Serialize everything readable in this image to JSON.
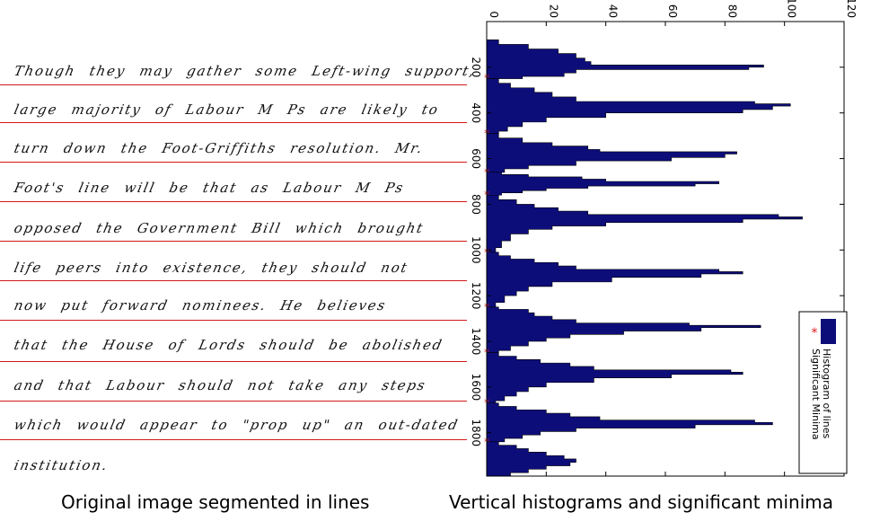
{
  "handwriting": {
    "lines": [
      "Though they may gather some Left-wing support, a",
      "large majority of Labour M Ps are likely to",
      "turn down the Foot-Griffiths resolution. Mr.",
      "Foot's line will be that as Labour M Ps",
      "opposed the Government Bill which brought",
      "life peers into existence, they should not",
      "now put forward nominees. He believes",
      "that the House of Lords should be abolished",
      "and that Labour should not take any steps",
      "which would appear to \"prop up\" an out-dated",
      "institution."
    ]
  },
  "captions": {
    "left": "Original image segmented in lines",
    "right": "Vertical histograms and significant minima"
  },
  "colors": {
    "histogram": "#0d0d7a",
    "minima": "#e01818",
    "segmentation_line": "#d41818"
  },
  "chart_data": {
    "type": "bar",
    "orientation": "horizontal histogram (rotated)",
    "x_axis": {
      "label": "",
      "range": [
        0,
        120
      ],
      "ticks": [
        0,
        20,
        40,
        60,
        80,
        100,
        120
      ]
    },
    "y_axis": {
      "label": "",
      "range": [
        0,
        1990
      ],
      "ticks": [
        200,
        400,
        600,
        800,
        1000,
        1200,
        1400,
        1600,
        1800
      ]
    },
    "legend": {
      "position": "bottom-right",
      "entries": [
        "Histogram of lines",
        "Significant Minima"
      ]
    },
    "series": [
      {
        "name": "Histogram of lines",
        "peaks": [
          {
            "y": [
              80,
              250
            ],
            "profile": [
              [
                80,
                4
              ],
              [
                100,
                14
              ],
              [
                120,
                24
              ],
              [
                140,
                30
              ],
              [
                160,
                33
              ],
              [
                175,
                35
              ],
              [
                190,
                93
              ],
              [
                200,
                88
              ],
              [
                210,
                30
              ],
              [
                225,
                26
              ],
              [
                240,
                12
              ],
              [
                250,
                3
              ]
            ]
          },
          {
            "y": [
              250,
              490
            ],
            "profile": [
              [
                250,
                4
              ],
              [
                270,
                8
              ],
              [
                290,
                16
              ],
              [
                310,
                22
              ],
              [
                330,
                30
              ],
              [
                350,
                90
              ],
              [
                360,
                102
              ],
              [
                370,
                96
              ],
              [
                385,
                86
              ],
              [
                400,
                40
              ],
              [
                420,
                20
              ],
              [
                440,
                12
              ],
              [
                460,
                7
              ],
              [
                480,
                4
              ],
              [
                490,
                2
              ]
            ]
          },
          {
            "y": [
              490,
              660
            ],
            "profile": [
              [
                490,
                4
              ],
              [
                510,
                12
              ],
              [
                530,
                22
              ],
              [
                545,
                34
              ],
              [
                560,
                38
              ],
              [
                570,
                84
              ],
              [
                580,
                80
              ],
              [
                595,
                62
              ],
              [
                610,
                30
              ],
              [
                630,
                14
              ],
              [
                645,
                6
              ],
              [
                660,
                2
              ]
            ]
          },
          {
            "y": [
              660,
              760
            ],
            "profile": [
              [
                660,
                5
              ],
              [
                670,
                14
              ],
              [
                680,
                32
              ],
              [
                690,
                40
              ],
              [
                700,
                78
              ],
              [
                710,
                70
              ],
              [
                720,
                34
              ],
              [
                730,
                20
              ],
              [
                740,
                12
              ],
              [
                750,
                5
              ],
              [
                760,
                2
              ]
            ]
          },
          {
            "y": [
              760,
              1010
            ],
            "profile": [
              [
                760,
                4
              ],
              [
                780,
                10
              ],
              [
                800,
                16
              ],
              [
                815,
                24
              ],
              [
                830,
                34
              ],
              [
                845,
                98
              ],
              [
                855,
                106
              ],
              [
                865,
                86
              ],
              [
                880,
                40
              ],
              [
                895,
                22
              ],
              [
                910,
                14
              ],
              [
                930,
                8
              ],
              [
                960,
                5
              ],
              [
                990,
                3
              ],
              [
                1010,
                2
              ]
            ]
          },
          {
            "y": [
              1010,
              1250
            ],
            "profile": [
              [
                1010,
                4
              ],
              [
                1025,
                8
              ],
              [
                1040,
                16
              ],
              [
                1055,
                24
              ],
              [
                1070,
                30
              ],
              [
                1085,
                78
              ],
              [
                1095,
                86
              ],
              [
                1105,
                72
              ],
              [
                1120,
                42
              ],
              [
                1140,
                22
              ],
              [
                1160,
                14
              ],
              [
                1180,
                10
              ],
              [
                1200,
                6
              ],
              [
                1230,
                3
              ],
              [
                1250,
                2
              ]
            ]
          },
          {
            "y": [
              1250,
              1450
            ],
            "profile": [
              [
                1250,
                4
              ],
              [
                1260,
                14
              ],
              [
                1275,
                16
              ],
              [
                1290,
                22
              ],
              [
                1305,
                30
              ],
              [
                1320,
                68
              ],
              [
                1330,
                92
              ],
              [
                1340,
                72
              ],
              [
                1355,
                46
              ],
              [
                1370,
                28
              ],
              [
                1385,
                20
              ],
              [
                1400,
                14
              ],
              [
                1420,
                8
              ],
              [
                1440,
                4
              ],
              [
                1450,
                2
              ]
            ]
          },
          {
            "y": [
              1450,
              1670
            ],
            "profile": [
              [
                1450,
                4
              ],
              [
                1465,
                10
              ],
              [
                1480,
                18
              ],
              [
                1495,
                28
              ],
              [
                1510,
                36
              ],
              [
                1525,
                82
              ],
              [
                1535,
                86
              ],
              [
                1545,
                62
              ],
              [
                1560,
                36
              ],
              [
                1580,
                20
              ],
              [
                1600,
                14
              ],
              [
                1620,
                10
              ],
              [
                1640,
                6
              ],
              [
                1660,
                3
              ],
              [
                1670,
                2
              ]
            ]
          },
          {
            "y": [
              1670,
              1840
            ],
            "profile": [
              [
                1670,
                4
              ],
              [
                1685,
                10
              ],
              [
                1700,
                20
              ],
              [
                1715,
                28
              ],
              [
                1730,
                38
              ],
              [
                1745,
                90
              ],
              [
                1755,
                96
              ],
              [
                1765,
                70
              ],
              [
                1780,
                30
              ],
              [
                1795,
                18
              ],
              [
                1810,
                12
              ],
              [
                1825,
                6
              ],
              [
                1840,
                2
              ]
            ]
          },
          {
            "y": [
              1840,
              1990
            ],
            "profile": [
              [
                1840,
                4
              ],
              [
                1855,
                10
              ],
              [
                1870,
                14
              ],
              [
                1885,
                20
              ],
              [
                1900,
                26
              ],
              [
                1915,
                30
              ],
              [
                1930,
                28
              ],
              [
                1945,
                20
              ],
              [
                1960,
                14
              ],
              [
                1975,
                8
              ],
              [
                1990,
                3
              ]
            ]
          }
        ]
      },
      {
        "name": "Significant Minima",
        "points": [
          {
            "y": 247,
            "value": 0
          },
          {
            "y": 490,
            "value": 0
          },
          {
            "y": 660,
            "value": 0
          },
          {
            "y": 760,
            "value": 0
          },
          {
            "y": 1010,
            "value": 0
          },
          {
            "y": 1250,
            "value": 0
          },
          {
            "y": 1450,
            "value": 0
          },
          {
            "y": 1670,
            "value": 0
          },
          {
            "y": 1840,
            "value": 0
          }
        ]
      }
    ]
  }
}
